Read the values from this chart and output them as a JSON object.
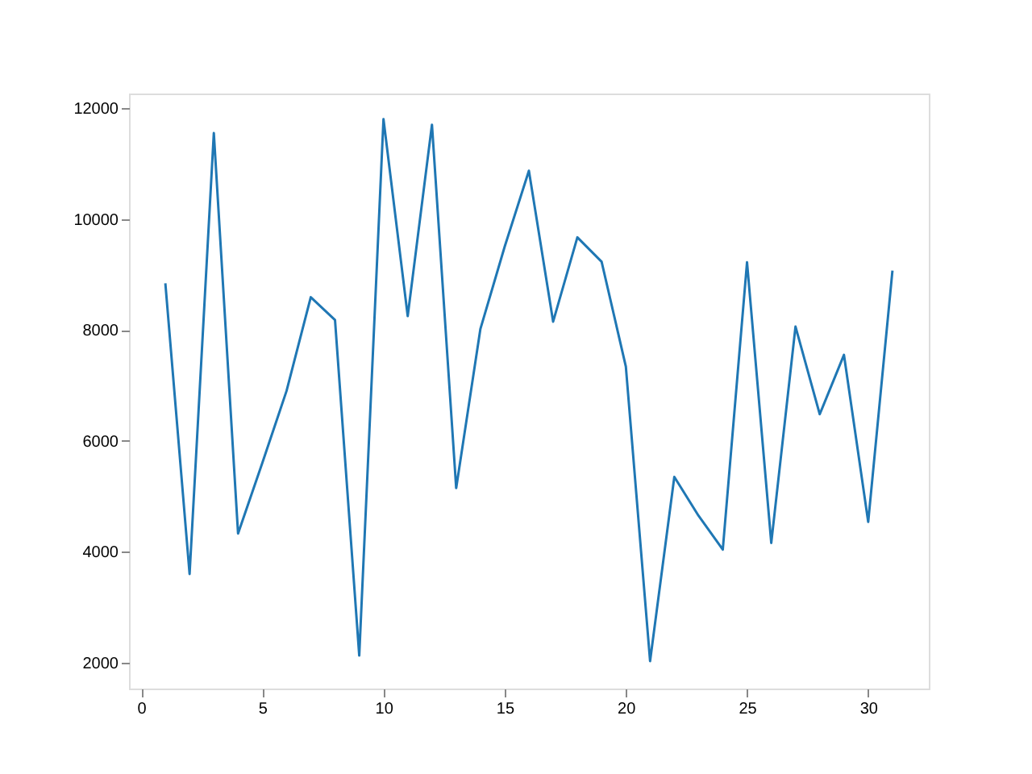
{
  "chart_data": {
    "type": "line",
    "x": [
      1,
      2,
      3,
      4,
      5,
      6,
      7,
      8,
      9,
      10,
      11,
      12,
      13,
      14,
      15,
      16,
      17,
      18,
      19,
      20,
      21,
      22,
      23,
      24,
      25,
      26,
      27,
      28,
      29,
      30,
      31
    ],
    "series": [
      {
        "color": "#1f77b4",
        "values": [
          8840,
          3600,
          11550,
          4330,
          5600,
          6900,
          8590,
          8180,
          2130,
          11800,
          8250,
          11700,
          5150,
          8020,
          9500,
          10870,
          8150,
          9670,
          9230,
          7340,
          2030,
          5350,
          4650,
          4040,
          9220,
          4160,
          8060,
          6480,
          7550,
          4540,
          9070
        ]
      }
    ],
    "xlim": [
      -0.5,
      32.5
    ],
    "ylim": [
      1535,
      12262
    ],
    "xticks": [
      0,
      5,
      10,
      15,
      20,
      25,
      30
    ],
    "yticks": [
      2000,
      4000,
      6000,
      8000,
      10000,
      12000
    ],
    "grid": false,
    "marker": "none",
    "line_style": "solid"
  }
}
